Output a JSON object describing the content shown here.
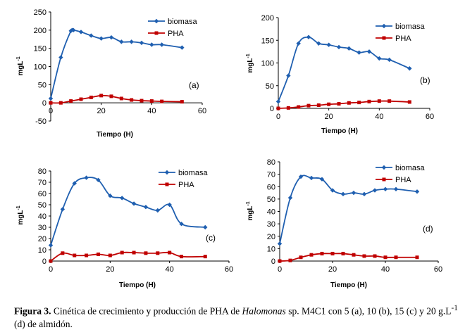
{
  "caption": {
    "label": "Figura 3.",
    "text_a": " Cinética de crecimiento y producción de PHA de ",
    "species": "Halomonas",
    "text_b": " sp. M4C1 con 5 (a), 10 (b), 15 (c) y 20 g.L",
    "superscript": "-1",
    "text_c": " (d) de almidón."
  },
  "colors": {
    "biomasa": "#1f5fb0",
    "pha": "#c00000",
    "axis": "#000000"
  },
  "chart_data": [
    {
      "type": "line",
      "panel_label": "(a)",
      "xlabel": "Tiempo (H)",
      "ylabel": "mgL-1",
      "xlim": [
        0,
        60
      ],
      "xticks": [
        0,
        20,
        40,
        60
      ],
      "ylim": [
        -50,
        250
      ],
      "yticks": [
        -50,
        0,
        50,
        100,
        150,
        200,
        250
      ],
      "grid": false,
      "legend": "top-right",
      "series": [
        {
          "name": "biomasa",
          "marker": "diamond",
          "x": [
            0,
            4,
            8,
            9,
            12,
            16,
            20,
            24,
            28,
            32,
            36,
            40,
            44,
            52
          ],
          "y": [
            12,
            125,
            198,
            200,
            195,
            185,
            177,
            180,
            168,
            168,
            165,
            160,
            160,
            152
          ]
        },
        {
          "name": "PHA",
          "marker": "square",
          "x": [
            0,
            4,
            8,
            12,
            16,
            20,
            24,
            28,
            32,
            36,
            40,
            44,
            52
          ],
          "y": [
            0,
            0,
            5,
            10,
            15,
            20,
            18,
            12,
            8,
            6,
            5,
            4,
            3
          ]
        }
      ]
    },
    {
      "type": "line",
      "panel_label": "(b)",
      "xlabel": "Tiempo (H)",
      "ylabel": "mgL-1",
      "xlim": [
        0,
        60
      ],
      "xticks": [
        0,
        20,
        40,
        60
      ],
      "ylim": [
        0,
        200
      ],
      "yticks": [
        0,
        50,
        100,
        150,
        200
      ],
      "grid": false,
      "legend": "top-right",
      "series": [
        {
          "name": "biomasa",
          "marker": "diamond",
          "x": [
            0,
            4,
            8,
            12,
            16,
            20,
            24,
            28,
            32,
            36,
            40,
            44,
            52
          ],
          "y": [
            15,
            72,
            143,
            157,
            143,
            140,
            135,
            132,
            123,
            125,
            110,
            107,
            88
          ]
        },
        {
          "name": "PHA",
          "marker": "square",
          "x": [
            0,
            4,
            8,
            12,
            16,
            20,
            24,
            28,
            32,
            36,
            40,
            44,
            52
          ],
          "y": [
            0,
            1,
            3,
            6,
            7,
            9,
            10,
            12,
            13,
            15,
            16,
            16,
            14
          ]
        }
      ]
    },
    {
      "type": "line",
      "panel_label": "(c)",
      "xlabel": "Tiempo (H)",
      "ylabel": "mgL-1",
      "xlim": [
        0,
        60
      ],
      "xticks": [
        0,
        20,
        40,
        60
      ],
      "ylim": [
        0,
        80
      ],
      "yticks": [
        0,
        10,
        20,
        30,
        40,
        50,
        60,
        70,
        80
      ],
      "grid": false,
      "legend": "top-right",
      "series": [
        {
          "name": "biomasa",
          "marker": "diamond",
          "x": [
            0,
            4,
            8,
            12,
            16,
            20,
            24,
            28,
            32,
            36,
            40,
            44,
            52
          ],
          "y": [
            14,
            46,
            69,
            74,
            72,
            58,
            56,
            51,
            48,
            45,
            50,
            33,
            30
          ]
        },
        {
          "name": "PHA",
          "marker": "square",
          "x": [
            0,
            4,
            8,
            12,
            16,
            20,
            24,
            28,
            32,
            36,
            40,
            44,
            52
          ],
          "y": [
            0,
            7,
            5,
            5,
            6,
            5,
            7.5,
            7.5,
            7,
            7,
            7.5,
            4,
            4
          ]
        }
      ]
    },
    {
      "type": "line",
      "panel_label": "(d)",
      "xlabel": "Tiempo (H)",
      "ylabel": "mgL-1",
      "xlim": [
        0,
        60
      ],
      "xticks": [
        0,
        20,
        40,
        60
      ],
      "ylim": [
        0,
        80
      ],
      "yticks": [
        0,
        10,
        20,
        30,
        40,
        50,
        60,
        70,
        80
      ],
      "grid": false,
      "legend": "top-right",
      "series": [
        {
          "name": "biomasa",
          "marker": "diamond",
          "x": [
            0,
            4,
            8,
            12,
            16,
            20,
            24,
            28,
            32,
            36,
            40,
            44,
            52
          ],
          "y": [
            14,
            51,
            68,
            67,
            66,
            57,
            54,
            55,
            54,
            57,
            58,
            58,
            56
          ]
        },
        {
          "name": "PHA",
          "marker": "square",
          "x": [
            0,
            4,
            8,
            12,
            16,
            20,
            24,
            28,
            32,
            36,
            40,
            44,
            52
          ],
          "y": [
            0,
            0.5,
            3,
            5,
            6,
            6,
            6,
            5,
            4,
            4,
            3,
            3,
            3
          ]
        }
      ]
    }
  ]
}
